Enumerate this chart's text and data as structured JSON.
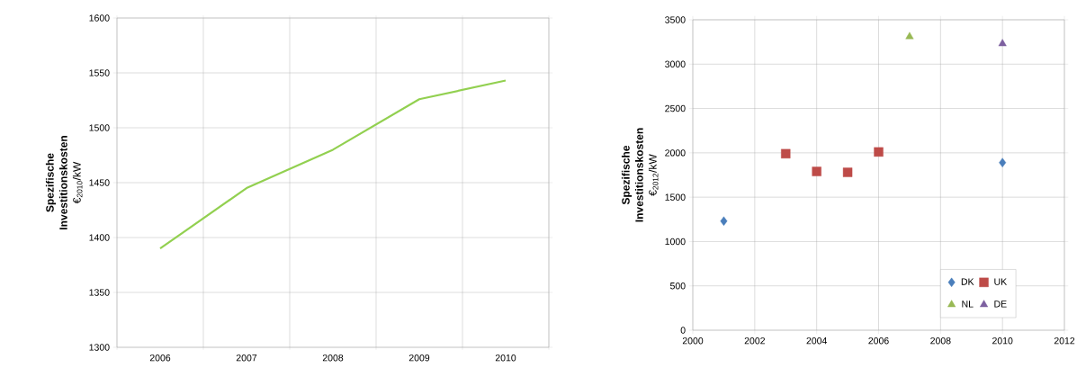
{
  "chart_data": [
    {
      "type": "line",
      "ylabel": "**Spezifische Investitionskosten** €$_{2010}$/kW",
      "categories": [
        "2006",
        "2007",
        "2008",
        "2009",
        "2010"
      ],
      "series": [
        {
          "color": "#92d050",
          "values": [
            1390,
            1445,
            1480,
            1526,
            1543
          ]
        }
      ],
      "ylim": [
        1300,
        1600
      ],
      "yticks": [
        1300,
        1350,
        1400,
        1450,
        1500,
        1550,
        1600
      ],
      "grid": true,
      "marker": "none",
      "line_style": "solid"
    },
    {
      "type": "scatter",
      "ylabel": "**Spezifische Investitionskosten** €$_{2012}$/kW",
      "series": [
        {
          "name": "DK",
          "color": "#4a7ebb",
          "marker": "diamond",
          "x": [
            2001,
            2010
          ],
          "values": [
            1230,
            1890
          ]
        },
        {
          "name": "UK",
          "color": "#be4b48",
          "marker": "square",
          "x": [
            2003,
            2004,
            2005,
            2006
          ],
          "values": [
            1990,
            1790,
            1780,
            2010
          ]
        },
        {
          "name": "NL",
          "color": "#98b954",
          "marker": "triangle",
          "x": [
            2007
          ],
          "values": [
            3310
          ]
        },
        {
          "name": "DE",
          "color": "#7d60a0",
          "marker": "triangle",
          "x": [
            2010
          ],
          "values": [
            3230
          ]
        }
      ],
      "xlim": [
        2000,
        2012
      ],
      "xticks": [
        2000,
        2002,
        2004,
        2006,
        2008,
        2010,
        2012
      ],
      "ylim": [
        0,
        3500
      ],
      "yticks": [
        0,
        500,
        1000,
        1500,
        2000,
        2500,
        3000,
        3500
      ],
      "grid": true,
      "legend": "bottom right"
    }
  ]
}
